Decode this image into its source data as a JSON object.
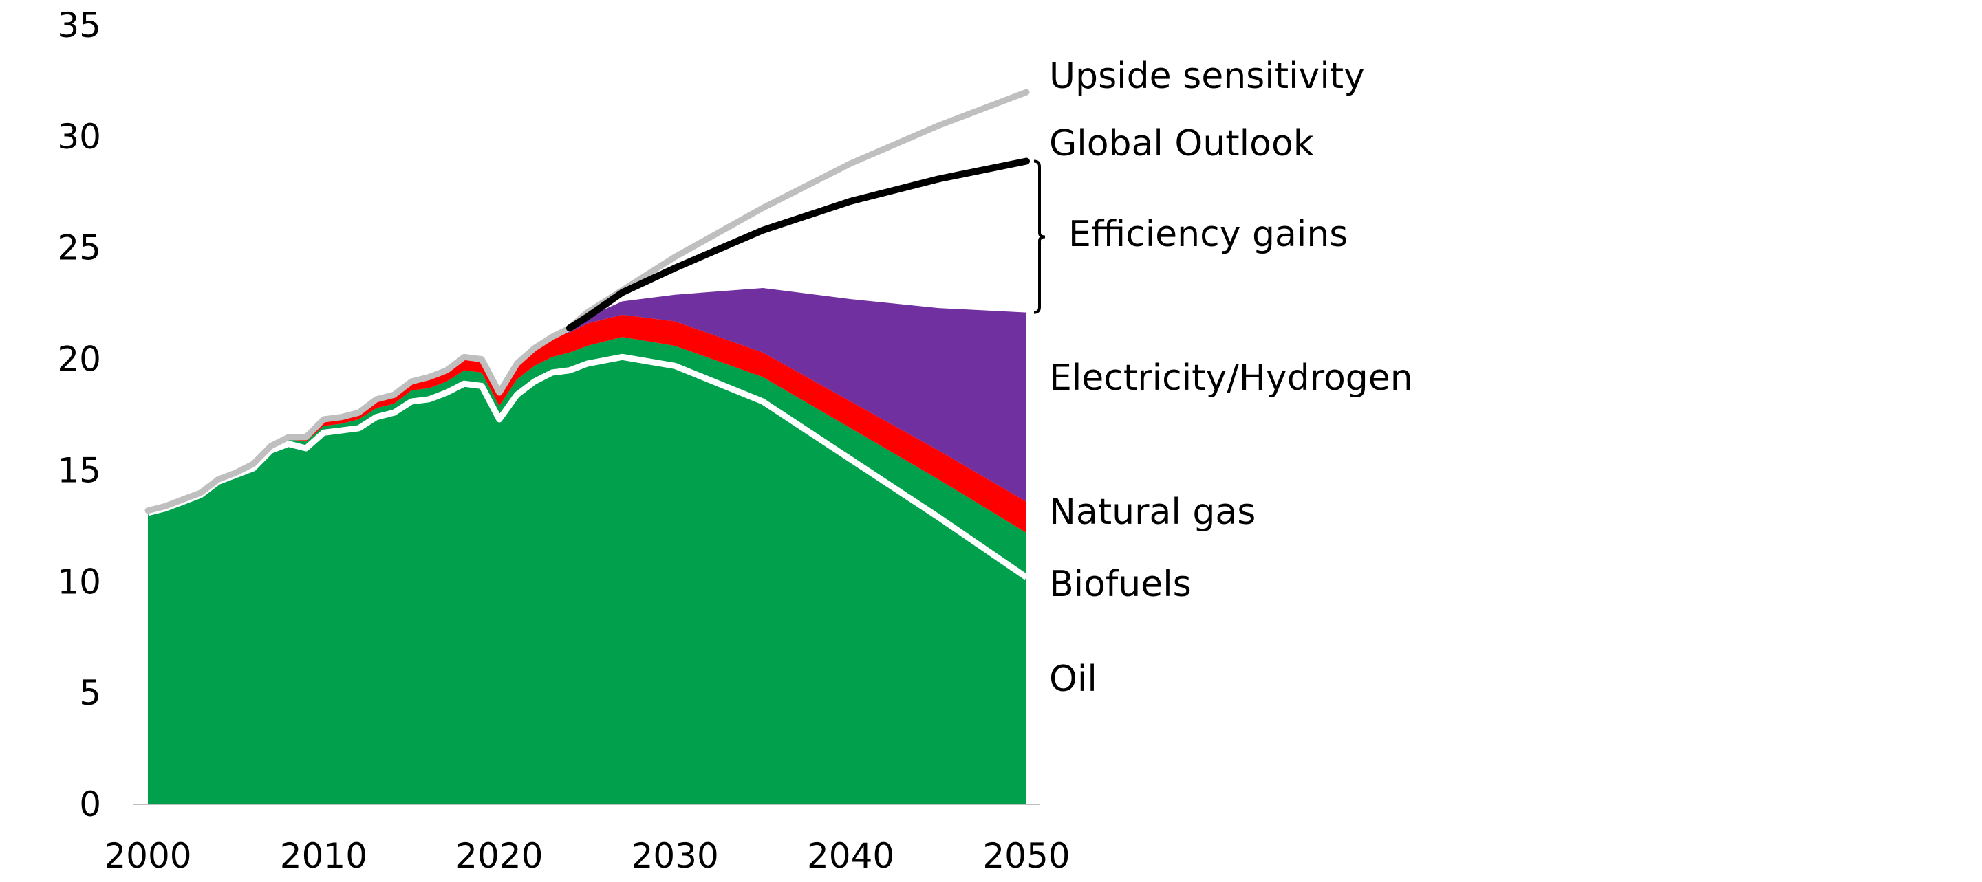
{
  "chart_data": {
    "type": "area",
    "title": "",
    "xlabel": "",
    "ylabel": "",
    "xlim": [
      2000,
      2050
    ],
    "ylim": [
      0,
      35
    ],
    "grid": false,
    "legend": "direct labels right",
    "x_ticks": [
      "2000",
      "2010",
      "2020",
      "2030",
      "2040",
      "2050"
    ],
    "y_ticks": [
      "0",
      "5",
      "10",
      "15",
      "20",
      "25",
      "30",
      "35"
    ],
    "x": [
      2000,
      2001,
      2002,
      2003,
      2004,
      2005,
      2006,
      2007,
      2008,
      2009,
      2010,
      2011,
      2012,
      2013,
      2014,
      2015,
      2016,
      2017,
      2018,
      2019,
      2020,
      2021,
      2022,
      2023,
      2024,
      2025,
      2027,
      2030,
      2035,
      2040,
      2045,
      2050
    ],
    "stacked_series": [
      {
        "name": "Oil",
        "color": "#00a04c",
        "values": [
          13.1,
          13.3,
          13.6,
          13.9,
          14.5,
          14.8,
          15.1,
          15.9,
          16.2,
          16.0,
          16.7,
          16.8,
          16.9,
          17.4,
          17.6,
          18.1,
          18.2,
          18.5,
          18.9,
          18.8,
          17.3,
          18.4,
          19.0,
          19.4,
          19.5,
          19.8,
          20.1,
          19.7,
          18.1,
          15.5,
          12.9,
          10.2
        ]
      },
      {
        "name": "Biofuels",
        "color": "#00a04c",
        "values": [
          0.1,
          0.1,
          0.1,
          0.1,
          0.1,
          0.1,
          0.2,
          0.2,
          0.2,
          0.3,
          0.3,
          0.3,
          0.4,
          0.4,
          0.4,
          0.5,
          0.5,
          0.5,
          0.6,
          0.6,
          0.6,
          0.7,
          0.7,
          0.7,
          0.8,
          0.8,
          0.9,
          0.9,
          1.1,
          1.4,
          1.7,
          2.0
        ]
      },
      {
        "name": "Natural gas",
        "color": "#ff0000",
        "values": [
          0,
          0,
          0,
          0,
          0,
          0,
          0,
          0,
          0.1,
          0.2,
          0.3,
          0.3,
          0.3,
          0.4,
          0.4,
          0.4,
          0.5,
          0.5,
          0.6,
          0.6,
          0.6,
          0.7,
          0.8,
          0.9,
          0.9,
          1.0,
          1.0,
          1.1,
          1.1,
          1.2,
          1.3,
          1.4
        ]
      },
      {
        "name": "Electricity/Hydrogen",
        "color": "#7030a0",
        "values": [
          0,
          0,
          0,
          0,
          0,
          0,
          0,
          0,
          0,
          0,
          0,
          0,
          0,
          0,
          0,
          0,
          0,
          0,
          0,
          0,
          0,
          0,
          0,
          0,
          0.1,
          0.3,
          0.6,
          1.2,
          2.9,
          4.6,
          6.4,
          8.5
        ]
      }
    ],
    "line_series": [
      {
        "name": "Upside sensitivity",
        "color": "#bfbfbf",
        "values": [
          13.2,
          13.4,
          13.7,
          14.0,
          14.6,
          14.9,
          15.3,
          16.1,
          16.5,
          16.5,
          17.3,
          17.4,
          17.6,
          18.2,
          18.4,
          19.0,
          19.2,
          19.5,
          20.1,
          20.0,
          18.5,
          19.8,
          20.5,
          21.0,
          21.4,
          22.1,
          23.1,
          24.6,
          26.8,
          28.8,
          30.5,
          32.0
        ]
      },
      {
        "name": "Global Outlook",
        "color": "#000000",
        "values": [
          null,
          null,
          null,
          null,
          null,
          null,
          null,
          null,
          null,
          null,
          null,
          null,
          null,
          null,
          null,
          null,
          null,
          null,
          null,
          null,
          null,
          null,
          null,
          null,
          21.4,
          21.9,
          23.0,
          24.1,
          25.8,
          27.1,
          28.1,
          28.9
        ]
      }
    ],
    "annotations": [
      {
        "text": "Efficiency gains",
        "type": "brace",
        "from": 22.1,
        "to": 28.9,
        "at_x": 2050
      }
    ],
    "labels": {
      "upside": "Upside sensitivity",
      "global": "Global Outlook",
      "efficiency": "Efficiency gains",
      "electricity": "Electricity/Hydrogen",
      "gas": "Natural gas",
      "biofuels": "Biofuels",
      "oil": "Oil"
    }
  }
}
